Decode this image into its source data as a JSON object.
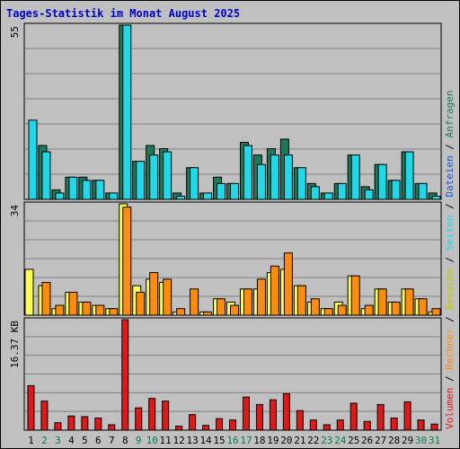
{
  "title": "Tages-Statistik im Monat August 2025",
  "chart_data": [
    {
      "type": "bar",
      "panel": "top",
      "max_label": "55",
      "ylim": [
        0,
        55
      ],
      "grid": true,
      "legend": "right-vertical",
      "categories": [
        "1",
        "2",
        "3",
        "4",
        "5",
        "6",
        "7",
        "8",
        "9",
        "10",
        "11",
        "12",
        "13",
        "14",
        "15",
        "16",
        "17",
        "18",
        "19",
        "20",
        "21",
        "22",
        "23",
        "24",
        "25",
        "26",
        "27",
        "28",
        "29",
        "30",
        "31"
      ],
      "series": [
        {
          "name": "Anfragen",
          "color": "#1c7a5a",
          "values": [
            0,
            17,
            3,
            7,
            7,
            6,
            2,
            55,
            12,
            17,
            16,
            2,
            10,
            2,
            7,
            5,
            18,
            14,
            16,
            19,
            10,
            5,
            2,
            5,
            14,
            4,
            11,
            6,
            15,
            5,
            2
          ]
        },
        {
          "name": "Dateien",
          "color": "#22d8e8",
          "values": [
            25,
            15,
            2,
            7,
            6,
            6,
            2,
            55,
            12,
            14,
            15,
            1,
            10,
            2,
            5,
            5,
            17,
            11,
            14,
            14,
            10,
            4,
            2,
            5,
            14,
            3,
            11,
            6,
            15,
            5,
            1
          ]
        }
      ]
    },
    {
      "type": "bar",
      "panel": "middle",
      "max_label": "34",
      "ylim": [
        0,
        34
      ],
      "grid": true,
      "categories": [
        "1",
        "2",
        "3",
        "4",
        "5",
        "6",
        "7",
        "8",
        "9",
        "10",
        "11",
        "12",
        "13",
        "14",
        "15",
        "16",
        "17",
        "18",
        "19",
        "20",
        "21",
        "22",
        "23",
        "24",
        "25",
        "26",
        "27",
        "28",
        "29",
        "30",
        "31"
      ],
      "series": [
        {
          "name": "Seiten",
          "color": "#22d8e8",
          "values": [
            0,
            0,
            0,
            0,
            0,
            0,
            0,
            0,
            0,
            0,
            0,
            0,
            0,
            0,
            0,
            0,
            0,
            0,
            0,
            0,
            0,
            0,
            0,
            0,
            0,
            0,
            0,
            0,
            0,
            0,
            0
          ]
        },
        {
          "name": "Besuche",
          "color": "#ffff55",
          "values": [
            14,
            9,
            2,
            7,
            4,
            3,
            2,
            34,
            9,
            11,
            10,
            1,
            0,
            1,
            5,
            4,
            8,
            8,
            13,
            14,
            9,
            4,
            2,
            4,
            12,
            2,
            8,
            4,
            8,
            5,
            1
          ]
        },
        {
          "name": "Rechner",
          "color": "#ff8c10",
          "values": [
            0,
            10,
            3,
            7,
            4,
            3,
            2,
            33,
            7,
            13,
            11,
            2,
            8,
            1,
            5,
            3,
            8,
            11,
            15,
            19,
            9,
            5,
            2,
            3,
            12,
            3,
            8,
            4,
            8,
            5,
            2
          ]
        }
      ]
    },
    {
      "type": "bar",
      "panel": "bottom",
      "max_label": "16.37 KB",
      "ylim": [
        0,
        16.37
      ],
      "grid": true,
      "categories": [
        "1",
        "2",
        "3",
        "4",
        "5",
        "6",
        "7",
        "8",
        "9",
        "10",
        "11",
        "12",
        "13",
        "14",
        "15",
        "16",
        "17",
        "18",
        "19",
        "20",
        "21",
        "22",
        "23",
        "24",
        "25",
        "26",
        "27",
        "28",
        "29",
        "30",
        "31"
      ],
      "series": [
        {
          "name": "Volumen",
          "color": "#e01818",
          "values": [
            6.6,
            4.3,
            1.1,
            2.1,
            2.0,
            1.8,
            0.8,
            16.37,
            3.3,
            4.7,
            4.3,
            0.6,
            2.3,
            0.7,
            1.7,
            1.5,
            4.9,
            3.8,
            4.5,
            5.4,
            2.9,
            1.5,
            0.8,
            1.5,
            4.0,
            1.3,
            3.8,
            1.8,
            4.2,
            1.5,
            0.9
          ]
        }
      ]
    }
  ],
  "legend": {
    "separator": " / ",
    "entries": [
      {
        "label": "Anfragen",
        "color": "#1c7a5a"
      },
      {
        "label": "Dateien",
        "color": "#1a55d8"
      },
      {
        "label": "Seiten",
        "color": "#22d8e8"
      },
      {
        "label": "Besuche",
        "color": "#c8c800"
      },
      {
        "label": "Rechner",
        "color": "#ff8c10"
      },
      {
        "label": "Volumen",
        "color": "#e01818"
      }
    ]
  },
  "weekend_days": [
    "2",
    "3",
    "9",
    "10",
    "16",
    "17",
    "23",
    "24",
    "30",
    "31"
  ],
  "colors": {
    "plot_bg": "#c0c0c0",
    "grid": "#808080",
    "weekday_label": "#000000",
    "weekend_label": "#008040",
    "title": "#0000cc"
  }
}
